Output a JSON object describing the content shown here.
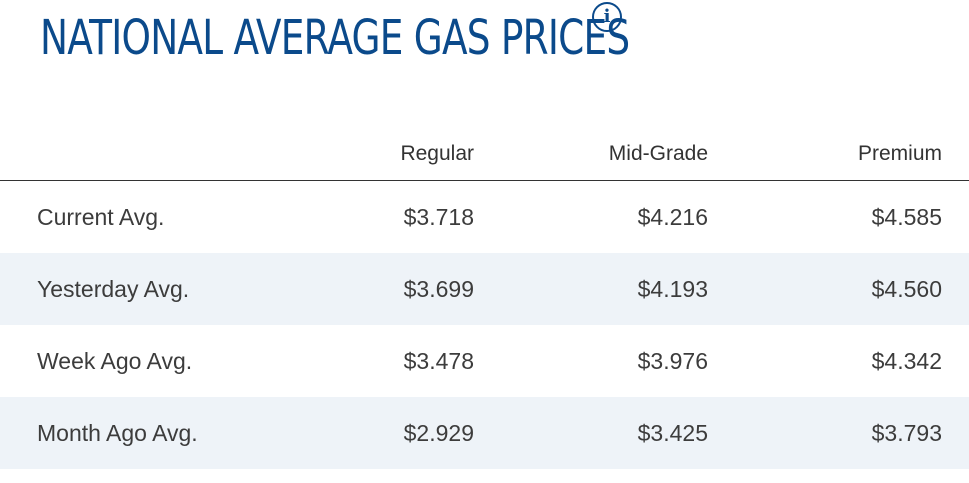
{
  "title": "NATIONAL AVERAGE GAS PRICES",
  "info_icon": "info-icon",
  "colors": {
    "title": "#0b4a8b",
    "alt_row": "#eef3f8",
    "text": "#3c3c3c"
  },
  "table": {
    "headers": [
      "",
      "Regular",
      "Mid-Grade",
      "Premium"
    ],
    "rows": [
      {
        "label": "Current Avg.",
        "regular": "$3.718",
        "mid_grade": "$4.216",
        "premium": "$4.585"
      },
      {
        "label": "Yesterday Avg.",
        "regular": "$3.699",
        "mid_grade": "$4.193",
        "premium": "$4.560"
      },
      {
        "label": "Week Ago Avg.",
        "regular": "$3.478",
        "mid_grade": "$3.976",
        "premium": "$4.342"
      },
      {
        "label": "Month Ago Avg.",
        "regular": "$2.929",
        "mid_grade": "$3.425",
        "premium": "$3.793"
      }
    ]
  }
}
